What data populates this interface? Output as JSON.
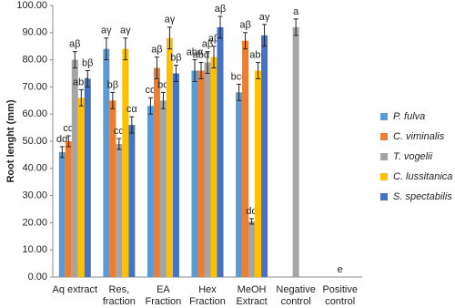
{
  "chart_data": {
    "type": "bar",
    "y_label": "Root lenght (mm)",
    "categories": [
      [
        "Aq extract"
      ],
      [
        "Res,",
        "fraction"
      ],
      [
        "EA",
        "Fraction"
      ],
      [
        "Hex",
        "Fraction"
      ],
      [
        "MeOH",
        "Extract"
      ],
      [
        "Negative",
        "control"
      ],
      [
        "Positive",
        "control"
      ]
    ],
    "ylim": [
      0,
      100
    ],
    "yticks": [
      {
        "value": 0,
        "label": "0.00"
      },
      {
        "value": 10,
        "label": "10.00"
      },
      {
        "value": 20,
        "label": "20.00"
      },
      {
        "value": 30,
        "label": "30.00"
      },
      {
        "value": 40,
        "label": "40.00"
      },
      {
        "value": 50,
        "label": "50.00"
      },
      {
        "value": 60,
        "label": "60.00"
      },
      {
        "value": 70,
        "label": "70.00"
      },
      {
        "value": 80,
        "label": "80.00"
      },
      {
        "value": 90,
        "label": "90.00"
      },
      {
        "value": 100,
        "label": "100.00"
      }
    ],
    "grid": false,
    "legend": "right",
    "series": [
      {
        "name": "P. fulva",
        "color": "#5b9bd5",
        "values": [
          46,
          84,
          63,
          76,
          68,
          null,
          null
        ],
        "errors": [
          2,
          4,
          3,
          4,
          3,
          null,
          null
        ],
        "annotations": [
          "dα",
          "aγ",
          "cα",
          "abα",
          "bcα",
          null,
          null
        ]
      },
      {
        "name": "C. viminalis",
        "color": "#ed7d31",
        "values": [
          50,
          65,
          77,
          76,
          87,
          null,
          null
        ],
        "errors": [
          2,
          3,
          4,
          3,
          3,
          null,
          null
        ],
        "annotations": [
          "cα",
          "bβ",
          "aβ",
          "abα",
          "aβ",
          null,
          null
        ]
      },
      {
        "name": "T. vogelii",
        "color": "#a5a5a5",
        "values": [
          80,
          49,
          65,
          79,
          20.5,
          92,
          0
        ],
        "errors": [
          3,
          2,
          3,
          4,
          1,
          3,
          null
        ],
        "annotations": [
          "aβ",
          "cα",
          "bα",
          "aβ",
          "dα",
          "a",
          "e"
        ]
      },
      {
        "name": "C. lussitanica",
        "color": "#ffc000",
        "values": [
          66,
          84,
          88,
          81,
          76,
          null,
          null
        ],
        "errors": [
          3,
          4,
          4,
          4,
          3,
          null,
          null
        ],
        "annotations": [
          "abβ",
          "aγ",
          "aγ",
          "aβ",
          "abβ",
          null,
          null
        ]
      },
      {
        "name": "S. spectabilis",
        "color": "#4472c4",
        "values": [
          73,
          56,
          75,
          92,
          89,
          null,
          null
        ],
        "errors": [
          3,
          3,
          3,
          4,
          4,
          null,
          null
        ],
        "annotations": [
          "bβ",
          "cα",
          "bβ",
          "aβ",
          "aγ",
          null,
          null
        ]
      }
    ]
  }
}
